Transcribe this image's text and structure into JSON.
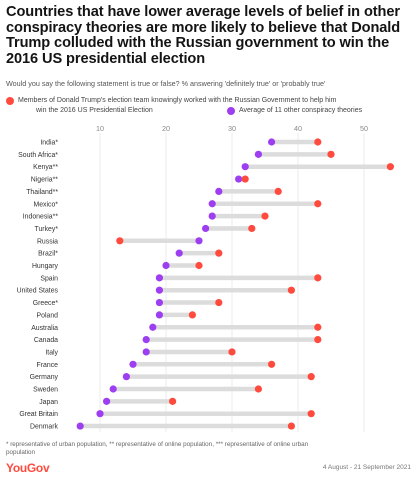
{
  "title": "Countries that have lower average levels of belief in other conspiracy theories are more likely to believe that Donald Trump colluded with the Russian government to win the 2016 US presidential election",
  "subtitle": "Would you say the following statement is true or false? % answering 'definitely true' or 'probably true'",
  "legend": {
    "item1": "Members of Donald Trump's election team knowingly worked with the Russian Government to help him win the 2016 US Presidential Election",
    "item1_line1": "Members of Donald Trump's election team knowingly worked with the Russian Government to help him",
    "item1_line2": "win the 2016 US Presidential Election",
    "item2": "Average of 11 other conspiracy theories"
  },
  "footnote": "* representative of urban population, ** representative of online population, *** representative of online urban population",
  "footnote_line1": "* representative of urban population, ** representative of online population, *** representative of online urban",
  "footnote_line2": "population",
  "logo": "YouGov",
  "date_range": "4 August - 21 September 2021",
  "colors": {
    "trump": "#ff4b3e",
    "average": "#9d3ff0",
    "bar": "#dcdcdc",
    "grid": "#e6e6e6"
  },
  "chart_data": {
    "type": "dot",
    "xlim": [
      5,
      55
    ],
    "xticks": [
      10,
      20,
      30,
      40,
      50
    ],
    "grid": true,
    "legend_position": "top",
    "categories": [
      "India*",
      "South Africa*",
      "Kenya**",
      "Nigeria**",
      "Thailand**",
      "Mexico*",
      "Indonesia**",
      "Turkey*",
      "Russia",
      "Brazil*",
      "Hungary",
      "Spain",
      "United States",
      "Greece*",
      "Poland",
      "Australia",
      "Canada",
      "Italy",
      "France",
      "Germany",
      "Sweden",
      "Japan",
      "Great Britain",
      "Denmark"
    ],
    "series": [
      {
        "name": "Members of Donald Trump's election team knowingly worked with the Russian Government to help him win the 2016 US Presidential Election",
        "color": "#ff4b3e",
        "values": [
          43,
          45,
          54,
          32,
          37,
          43,
          35,
          33,
          13,
          28,
          25,
          43,
          39,
          28,
          24,
          43,
          43,
          30,
          36,
          42,
          34,
          21,
          42,
          39
        ]
      },
      {
        "name": "Average of 11 other conspiracy theories",
        "color": "#9d3ff0",
        "values": [
          36,
          34,
          32,
          31,
          28,
          27,
          27,
          26,
          25,
          22,
          20,
          19,
          19,
          19,
          19,
          18,
          17,
          17,
          15,
          14,
          12,
          11,
          10,
          7
        ]
      }
    ]
  }
}
